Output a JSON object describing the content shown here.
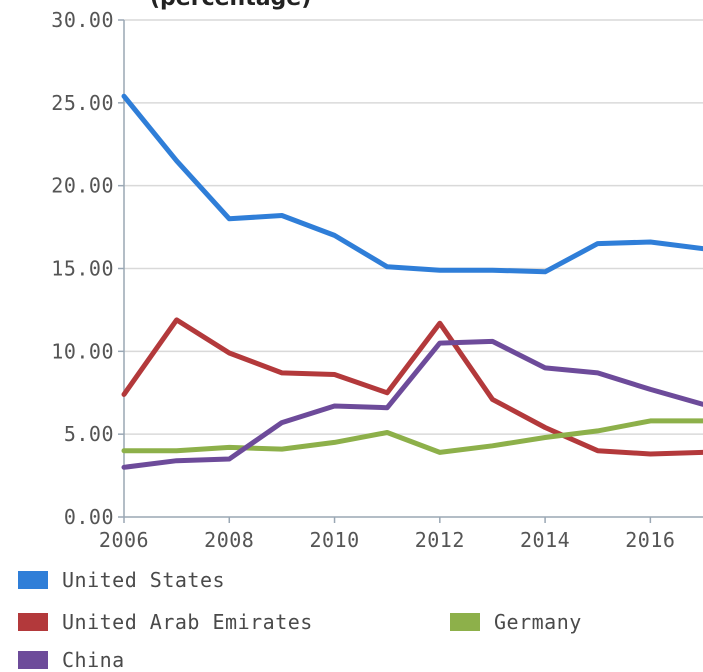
{
  "title": "(percentage)",
  "chart_data": {
    "type": "line",
    "x": [
      2006,
      2007,
      2008,
      2009,
      2010,
      2011,
      2012,
      2013,
      2014,
      2015,
      2016,
      2017
    ],
    "xticks": [
      "2006",
      "2008",
      "2010",
      "2012",
      "2014",
      "2016"
    ],
    "yticks": [
      "0.00",
      "5.00",
      "10.00",
      "15.00",
      "20.00",
      "25.00",
      "30.00"
    ],
    "ylim": [
      0,
      30
    ],
    "xlim": [
      2006,
      2017
    ],
    "grid": true,
    "legend_position": "bottom",
    "series": [
      {
        "name": "United States",
        "color": "#2f7ed8",
        "values": [
          25.4,
          21.5,
          18.0,
          18.2,
          17.0,
          15.1,
          14.9,
          14.9,
          14.8,
          16.5,
          16.6,
          16.2
        ]
      },
      {
        "name": "United Arab Emirates",
        "color": "#b3393b",
        "values": [
          7.4,
          11.9,
          9.9,
          8.7,
          8.6,
          7.5,
          11.7,
          7.1,
          5.4,
          4.0,
          3.8,
          3.9
        ]
      },
      {
        "name": "Germany",
        "color": "#8db04a",
        "values": [
          4.0,
          4.0,
          4.2,
          4.1,
          4.5,
          5.1,
          3.9,
          4.3,
          4.8,
          5.2,
          5.8,
          5.8
        ]
      },
      {
        "name": "China",
        "color": "#6d4b9a",
        "values": [
          3.0,
          3.4,
          3.5,
          5.7,
          6.7,
          6.6,
          10.5,
          10.6,
          9.0,
          8.7,
          7.7,
          6.8
        ]
      }
    ]
  }
}
